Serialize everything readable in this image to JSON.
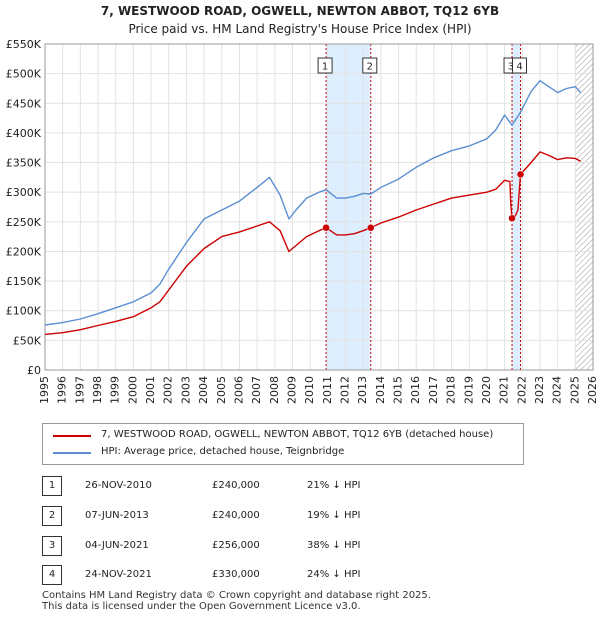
{
  "title": "7, WESTWOOD ROAD, OGWELL, NEWTON ABBOT, TQ12 6YB",
  "subtitle": "Price paid vs. HM Land Registry's House Price Index (HPI)",
  "colors": {
    "property": "#cc0000",
    "hpi": "#5b8fd0",
    "shade": "#ddeeff",
    "marker_line": "#cc0000"
  },
  "chart_data": {
    "type": "line",
    "xlim": [
      1995,
      2026
    ],
    "ylim": [
      0,
      550000
    ],
    "x_ticks": [
      "1995",
      "1996",
      "1997",
      "1998",
      "1999",
      "2000",
      "2001",
      "2002",
      "2003",
      "2004",
      "2005",
      "2006",
      "2007",
      "2008",
      "2009",
      "2010",
      "2011",
      "2012",
      "2013",
      "2014",
      "2015",
      "2016",
      "2017",
      "2018",
      "2019",
      "2020",
      "2021",
      "2022",
      "2023",
      "2024",
      "2025",
      "2026"
    ],
    "y_ticks": [
      {
        "value": 0,
        "label": "£0"
      },
      {
        "value": 50000,
        "label": "£50K"
      },
      {
        "value": 100000,
        "label": "£100K"
      },
      {
        "value": 150000,
        "label": "£150K"
      },
      {
        "value": 200000,
        "label": "£200K"
      },
      {
        "value": 250000,
        "label": "£250K"
      },
      {
        "value": 300000,
        "label": "£300K"
      },
      {
        "value": 350000,
        "label": "£350K"
      },
      {
        "value": 400000,
        "label": "£400K"
      },
      {
        "value": 450000,
        "label": "£450K"
      },
      {
        "value": 500000,
        "label": "£500K"
      },
      {
        "value": 550000,
        "label": "£550K"
      }
    ],
    "shaded_ranges": [
      [
        2010.9,
        2013.43
      ],
      [
        2021.42,
        2021.9
      ]
    ],
    "future_hatch_from": 2025.0,
    "series": [
      {
        "name": "7, WESTWOOD ROAD, OGWELL, NEWTON ABBOT, TQ12 6YB (detached house)",
        "color": "#cc0000",
        "x": [
          1995.0,
          1996.0,
          1997.0,
          1998.0,
          1999.0,
          2000.0,
          2001.0,
          2001.5,
          2002.0,
          2003.0,
          2004.0,
          2005.0,
          2006.0,
          2007.0,
          2007.7,
          2008.3,
          2008.8,
          2009.2,
          2009.8,
          2010.5,
          2010.9,
          2011.5,
          2012.0,
          2012.5,
          2013.0,
          2013.43,
          2014.0,
          2015.0,
          2016.0,
          2017.0,
          2018.0,
          2019.0,
          2020.0,
          2020.5,
          2021.0,
          2021.3,
          2021.35,
          2021.42,
          2021.6,
          2021.75,
          2021.9,
          2022.5,
          2023.0,
          2023.5,
          2024.0,
          2024.5,
          2025.0,
          2025.3
        ],
        "y": [
          60000,
          63000,
          68000,
          75000,
          82000,
          90000,
          105000,
          115000,
          135000,
          175000,
          205000,
          225000,
          233000,
          243000,
          250000,
          235000,
          200000,
          210000,
          225000,
          235000,
          240000,
          228000,
          228000,
          230000,
          235000,
          240000,
          248000,
          258000,
          270000,
          280000,
          290000,
          295000,
          300000,
          305000,
          320000,
          318000,
          280000,
          256000,
          260000,
          270000,
          330000,
          350000,
          368000,
          362000,
          355000,
          358000,
          357000,
          352000
        ]
      },
      {
        "name": "HPI: Average price, detached house, Teignbridge",
        "color": "#5b8fd0",
        "x": [
          1995.0,
          1996.0,
          1997.0,
          1998.0,
          1999.0,
          2000.0,
          2001.0,
          2001.5,
          2002.0,
          2003.0,
          2004.0,
          2005.0,
          2006.0,
          2007.0,
          2007.7,
          2008.3,
          2008.8,
          2009.2,
          2009.8,
          2010.5,
          2010.9,
          2011.5,
          2012.0,
          2012.5,
          2013.0,
          2013.43,
          2014.0,
          2015.0,
          2016.0,
          2017.0,
          2018.0,
          2019.0,
          2020.0,
          2020.5,
          2021.0,
          2021.42,
          2021.9,
          2022.5,
          2023.0,
          2023.5,
          2024.0,
          2024.5,
          2025.0,
          2025.3
        ],
        "y": [
          76000,
          80000,
          86000,
          95000,
          105000,
          115000,
          130000,
          145000,
          170000,
          215000,
          255000,
          270000,
          285000,
          308000,
          325000,
          295000,
          255000,
          270000,
          290000,
          300000,
          304000,
          290000,
          290000,
          293000,
          298000,
          297000,
          308000,
          322000,
          342000,
          358000,
          370000,
          378000,
          390000,
          405000,
          430000,
          413000,
          435000,
          470000,
          488000,
          478000,
          468000,
          475000,
          478000,
          468000
        ]
      }
    ],
    "markers": [
      {
        "label": "1",
        "x": 2010.9,
        "y": 240000
      },
      {
        "label": "2",
        "x": 2013.43,
        "y": 240000
      },
      {
        "label": "3",
        "x": 2021.42,
        "y": 256000
      },
      {
        "label": "4",
        "x": 2021.9,
        "y": 330000
      }
    ]
  },
  "legend": {
    "property_label": "7, WESTWOOD ROAD, OGWELL, NEWTON ABBOT, TQ12 6YB (detached house)",
    "hpi_label": "HPI: Average price, detached house, Teignbridge"
  },
  "transactions": [
    {
      "num": "1",
      "date": "26-NOV-2010",
      "price": "£240,000",
      "hpi": "21% ↓ HPI"
    },
    {
      "num": "2",
      "date": "07-JUN-2013",
      "price": "£240,000",
      "hpi": "19% ↓ HPI"
    },
    {
      "num": "3",
      "date": "04-JUN-2021",
      "price": "£256,000",
      "hpi": "38% ↓ HPI"
    },
    {
      "num": "4",
      "date": "24-NOV-2021",
      "price": "£330,000",
      "hpi": "24% ↓ HPI"
    }
  ],
  "footer": {
    "line1": "Contains HM Land Registry data © Crown copyright and database right 2025.",
    "line2": "This data is licensed under the Open Government Licence v3.0."
  }
}
